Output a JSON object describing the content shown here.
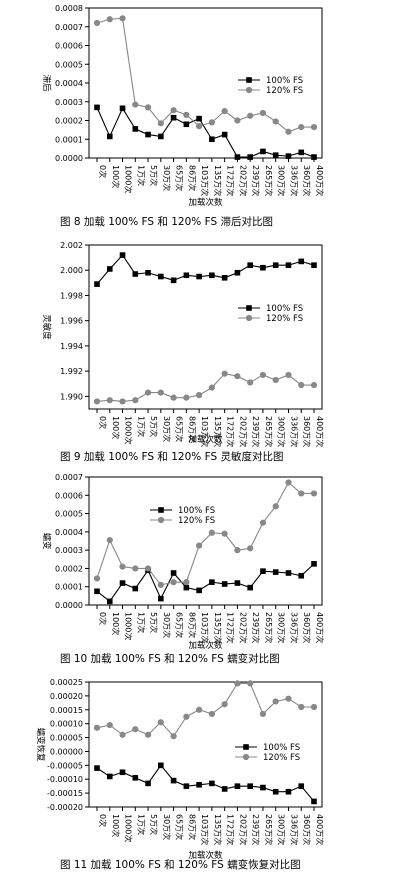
{
  "chart_data": [
    {
      "type": "line",
      "title": "图 8   加载 100% FS 和 120% FS 滞后对比图",
      "ylabel": "滞后",
      "xlabel": "加载次数",
      "ylim": [
        0,
        0.0008
      ],
      "yticks": [
        "0.0000",
        "0.0001",
        "0.0002",
        "0.0003",
        "0.0004",
        "0.0005",
        "0.0006",
        "0.0007",
        "0.0008"
      ],
      "ytick_values": [
        0,
        0.0001,
        0.0002,
        0.0003,
        0.0004,
        0.0005,
        0.0006,
        0.0007,
        0.0008
      ],
      "legend_position": "right",
      "grid": false,
      "categories": [
        "0次",
        "100次",
        "1000次",
        "1万次",
        "5万次",
        "30万次",
        "65万次",
        "86万次",
        "103万次",
        "135万次",
        "172万次",
        "202万次",
        "239万次",
        "265万次",
        "300万次",
        "336万次",
        "360万次",
        "400万次"
      ],
      "series": [
        {
          "name": "100%  FS",
          "marker": "square",
          "color": "#000000",
          "values": [
            0.00027,
            0.000115,
            0.000265,
            0.000155,
            0.000125,
            0.000115,
            0.000215,
            0.00018,
            0.00021,
            0.0001,
            0.000125,
            5e-06,
            5e-06,
            3.5e-05,
            1.5e-05,
            1e-05,
            3e-05,
            5e-06
          ]
        },
        {
          "name": "120%  FS",
          "marker": "circle",
          "color": "#888888",
          "values": [
            0.00072,
            0.00074,
            0.000745,
            0.000285,
            0.00027,
            0.000185,
            0.000255,
            0.00023,
            0.00017,
            0.00019,
            0.00025,
            0.0002,
            0.000225,
            0.00024,
            0.000195,
            0.00014,
            0.000165,
            0.000165
          ]
        }
      ]
    },
    {
      "type": "line",
      "title": "图 9   加载 100% FS 和 120% FS 灵敏度对比图",
      "ylabel": "灵敏度",
      "xlabel": "加载次数",
      "ylim": [
        1.989,
        2.002
      ],
      "yticks": [
        "1.990",
        "1.992",
        "1.994",
        "1.996",
        "1.998",
        "2.000",
        "2.002"
      ],
      "ytick_values": [
        1.99,
        1.992,
        1.994,
        1.996,
        1.998,
        2.0,
        2.002
      ],
      "legend_position": "right",
      "grid": false,
      "categories": [
        "0次",
        "100次",
        "1000次",
        "1万次",
        "5万次",
        "30万次",
        "65万次",
        "86万次",
        "103万次",
        "135万次",
        "172万次",
        "202万次",
        "239万次",
        "265万次",
        "300万次",
        "336万次",
        "360万次",
        "400万次"
      ],
      "series": [
        {
          "name": "100%  FS",
          "marker": "square",
          "color": "#000000",
          "values": [
            1.9989,
            2.0001,
            2.0012,
            1.9997,
            1.9998,
            1.9995,
            1.9992,
            1.9996,
            1.9995,
            1.9996,
            1.9994,
            1.9998,
            2.0004,
            2.0002,
            2.0004,
            2.0004,
            2.0007,
            2.0004
          ]
        },
        {
          "name": "120%  FS",
          "marker": "circle",
          "color": "#888888",
          "values": [
            1.9896,
            1.9897,
            1.9896,
            1.9897,
            1.9903,
            1.9903,
            1.9899,
            1.9899,
            1.9901,
            1.9907,
            1.9918,
            1.9916,
            1.9911,
            1.9917,
            1.9913,
            1.9917,
            1.9909,
            1.9909
          ]
        }
      ]
    },
    {
      "type": "line",
      "title": "图 10   加载 100% FS 和 120% FS 蠕变对比图",
      "ylabel": "蠕变",
      "xlabel": "加载次数",
      "ylim": [
        0,
        0.0007
      ],
      "yticks": [
        "0.0000",
        "0.0001",
        "0.0002",
        "0.0003",
        "0.0004",
        "0.0005",
        "0.0006",
        "0.0007"
      ],
      "ytick_values": [
        0,
        0.0001,
        0.0002,
        0.0003,
        0.0004,
        0.0005,
        0.0006,
        0.0007
      ],
      "legend_position": "top-left",
      "grid": false,
      "categories": [
        "0次",
        "100次",
        "1000次",
        "1万次",
        "5万次",
        "30万次",
        "65万次",
        "86万次",
        "103万次",
        "135万次",
        "172万次",
        "202万次",
        "239万次",
        "265万次",
        "300万次",
        "336万次",
        "360万次",
        "400万次"
      ],
      "series": [
        {
          "name": "100%  FS",
          "marker": "square",
          "color": "#000000",
          "values": [
            7.5e-05,
            2e-05,
            0.00012,
            9e-05,
            0.00019,
            3.5e-05,
            0.000175,
            9.5e-05,
            8e-05,
            0.000125,
            0.000115,
            0.00012,
            9.5e-05,
            0.000185,
            0.00018,
            0.000175,
            0.00016,
            0.000225
          ]
        },
        {
          "name": "120%  FS",
          "marker": "circle",
          "color": "#888888",
          "values": [
            0.000145,
            0.000355,
            0.00021,
            0.0002,
            0.0002,
            0.00011,
            0.000125,
            0.000125,
            0.000325,
            0.000395,
            0.00039,
            0.0003,
            0.00031,
            0.00045,
            0.00054,
            0.00067,
            0.00061,
            0.00061
          ]
        }
      ]
    },
    {
      "type": "line",
      "title": "图 11   加载 100% FS 和 120% FS 蠕变恢复对比图",
      "ylabel": "蠕变恢复",
      "xlabel": "加载次数",
      "ylim": [
        -0.0002,
        0.00025
      ],
      "yticks": [
        "-0.00020",
        "-0.00015",
        "-0.00010",
        "-0.00005",
        "0.00000",
        "0.00005",
        "0.00010",
        "0.00015",
        "0.00020",
        "0.00025"
      ],
      "ytick_values": [
        -0.0002,
        -0.00015,
        -0.0001,
        -5e-05,
        0,
        5e-05,
        0.0001,
        0.00015,
        0.0002,
        0.00025
      ],
      "legend_position": "center-right",
      "grid": false,
      "categories": [
        "0次",
        "100次",
        "1000次",
        "1万次",
        "5万次",
        "30万次",
        "65万次",
        "86万次",
        "103万次",
        "135万次",
        "172万次",
        "202万次",
        "239万次",
        "265万次",
        "300万次",
        "336万次",
        "360万次",
        "400万次"
      ],
      "series": [
        {
          "name": "100%  FS",
          "marker": "square",
          "color": "#000000",
          "values": [
            -6e-05,
            -9e-05,
            -7.5e-05,
            -9.5e-05,
            -0.000115,
            -5e-05,
            -0.000105,
            -0.000125,
            -0.00012,
            -0.000115,
            -0.000135,
            -0.000125,
            -0.000125,
            -0.00013,
            -0.000145,
            -0.000145,
            -0.000125,
            -0.00018
          ]
        },
        {
          "name": "120%  FS",
          "marker": "circle",
          "color": "#888888",
          "values": [
            8.5e-05,
            9.5e-05,
            6e-05,
            8e-05,
            6e-05,
            0.000105,
            5.5e-05,
            0.000125,
            0.00015,
            0.000135,
            0.00017,
            0.000245,
            0.000245,
            0.000135,
            0.00018,
            0.00019,
            0.00016,
            0.00016
          ]
        }
      ]
    }
  ]
}
